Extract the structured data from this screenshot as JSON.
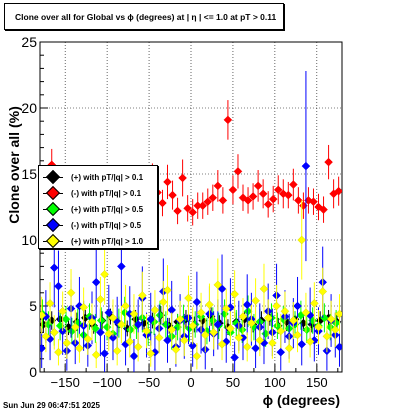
{
  "title": "Clone  over all for Global vs ϕ  (degrees) at |   η  | <= 1.0 at pT > 0.11",
  "timestamp": "Sun Jun 29 06:47:51 2025",
  "chart_data": {
    "type": "scatter",
    "xlabel": "ϕ  (degrees)",
    "ylabel": "Clone  over all (%)",
    "xlim": [
      -180,
      180
    ],
    "ylim": [
      0,
      25
    ],
    "xticks": [
      -150,
      -100,
      -50,
      0,
      50,
      100,
      150
    ],
    "yticks": [
      0,
      5,
      10,
      15,
      20,
      25
    ],
    "grid": true,
    "legend_position": "left-middle",
    "series": [
      {
        "name": "(+) with pT/|q| > 0.1",
        "color": "#000000",
        "x": [
          -176,
          -166,
          -156,
          -146,
          -136,
          -126,
          -116,
          -106,
          -96,
          -86,
          -76,
          -66,
          -56,
          -46,
          -36,
          -26,
          -16,
          -6,
          4,
          14,
          24,
          34,
          44,
          54,
          64,
          74,
          84,
          94,
          104,
          114,
          124,
          134,
          144,
          154,
          164,
          174
        ],
        "y": [
          3.6,
          3.9,
          4.0,
          3.4,
          3.8,
          4.1,
          3.5,
          3.9,
          4.2,
          3.6,
          3.3,
          4.0,
          3.7,
          3.9,
          4.3,
          3.5,
          3.8,
          4.0,
          3.6,
          3.9,
          4.2,
          3.7,
          3.4,
          3.8,
          4.0,
          3.6,
          3.9,
          4.1,
          3.5,
          3.8,
          4.0,
          3.7,
          3.6,
          3.9,
          4.1,
          3.8
        ],
        "err": [
          0.6,
          0.7,
          0.6,
          0.6,
          0.7,
          0.6,
          0.6,
          0.7,
          0.6,
          0.6,
          0.6,
          0.7,
          0.6,
          0.6,
          0.7,
          0.6,
          0.6,
          0.7,
          0.6,
          0.6,
          0.7,
          0.6,
          0.6,
          0.7,
          0.6,
          0.6,
          0.7,
          0.6,
          0.6,
          0.7,
          0.6,
          0.6,
          0.6,
          0.7,
          0.6,
          0.6
        ]
      },
      {
        "name": "(-) with pT/|q| > 0.1",
        "color": "#ff0000",
        "x": [
          -178,
          -172,
          -166,
          -160,
          -154,
          -148,
          -142,
          -136,
          -130,
          -124,
          -118,
          -112,
          -106,
          -100,
          -94,
          -88,
          -82,
          -76,
          -70,
          -64,
          -58,
          -52,
          -46,
          -40,
          -34,
          -28,
          -22,
          -16,
          -10,
          -4,
          2,
          8,
          14,
          20,
          26,
          32,
          38,
          44,
          50,
          56,
          62,
          68,
          74,
          80,
          86,
          92,
          98,
          104,
          110,
          116,
          122,
          128,
          134,
          140,
          146,
          152,
          158,
          164,
          170,
          176
        ],
        "y": [
          13.5,
          14.0,
          15.7,
          13.2,
          12.6,
          13.3,
          12.4,
          13.1,
          12.5,
          12.8,
          13.0,
          12.2,
          12.7,
          11.6,
          11.4,
          11.8,
          11.5,
          12.0,
          11.2,
          12.3,
          11.9,
          12.0,
          14.5,
          13.6,
          12.8,
          14.4,
          13.4,
          12.2,
          14.7,
          12.4,
          12.1,
          12.6,
          12.6,
          12.9,
          13.2,
          14.1,
          13.0,
          19.1,
          13.8,
          15.2,
          13.2,
          13.0,
          13.3,
          14.1,
          13.5,
          12.7,
          13.1,
          13.8,
          13.5,
          13.4,
          14.2,
          13.0,
          12.6,
          13.0,
          12.9,
          12.5,
          12.3,
          15.9,
          13.5,
          13.7
        ],
        "err": [
          0.9,
          1.0,
          1.2,
          1.0,
          0.9,
          1.0,
          0.9,
          1.0,
          0.9,
          1.0,
          1.0,
          0.9,
          1.0,
          0.9,
          0.9,
          1.0,
          0.9,
          1.0,
          0.9,
          1.0,
          0.9,
          1.0,
          1.3,
          1.1,
          1.0,
          1.3,
          1.1,
          1.0,
          1.4,
          1.0,
          1.0,
          1.0,
          1.0,
          1.0,
          1.0,
          1.2,
          1.0,
          1.5,
          1.1,
          1.3,
          1.0,
          1.0,
          1.0,
          1.2,
          1.1,
          1.0,
          1.0,
          1.1,
          1.1,
          1.0,
          1.2,
          1.0,
          1.0,
          1.0,
          1.0,
          1.0,
          1.0,
          1.3,
          1.1,
          1.1
        ]
      },
      {
        "name": "(+) with pT/|q| > 0.5",
        "color": "#00ff00",
        "x": [
          -177,
          -170,
          -163,
          -156,
          -149,
          -142,
          -135,
          -128,
          -121,
          -114,
          -107,
          -100,
          -93,
          -86,
          -79,
          -72,
          -65,
          -58,
          -51,
          -44,
          -37,
          -30,
          -23,
          -16,
          -9,
          -2,
          5,
          12,
          19,
          26,
          33,
          40,
          47,
          54,
          61,
          68,
          75,
          82,
          89,
          96,
          103,
          110,
          117,
          124,
          131,
          138,
          145,
          152,
          159,
          166,
          173
        ],
        "y": [
          4.4,
          3.6,
          3.0,
          3.5,
          4.0,
          3.1,
          3.7,
          2.8,
          4.2,
          3.3,
          3.9,
          3.4,
          2.9,
          3.7,
          4.5,
          3.2,
          3.5,
          4.1,
          3.0,
          3.8,
          4.3,
          3.6,
          2.7,
          3.4,
          4.0,
          3.3,
          3.6,
          4.2,
          3.1,
          3.9,
          3.5,
          4.4,
          3.0,
          3.7,
          3.2,
          4.6,
          3.4,
          3.8,
          2.9,
          4.1,
          3.5,
          4.0,
          3.3,
          3.6,
          4.3,
          3.2,
          3.9,
          3.5,
          4.1,
          3.4,
          3.7
        ],
        "err": [
          1.1,
          1.0,
          1.0,
          1.1,
          1.0,
          1.0,
          1.1,
          1.0,
          1.0,
          1.1,
          1.0,
          1.0,
          1.0,
          1.1,
          1.2,
          1.0,
          1.0,
          1.1,
          1.0,
          1.0,
          1.1,
          1.0,
          1.0,
          1.0,
          1.1,
          1.0,
          1.0,
          1.1,
          1.0,
          1.0,
          1.0,
          1.1,
          1.0,
          1.0,
          1.0,
          1.2,
          1.0,
          1.0,
          1.0,
          1.1,
          1.0,
          1.0,
          1.0,
          1.0,
          1.1,
          1.0,
          1.0,
          1.0,
          1.1,
          1.0,
          1.0
        ]
      },
      {
        "name": "(-) with pT/|q| > 0.5",
        "color": "#0000ff",
        "x": [
          -178,
          -173,
          -168,
          -163,
          -158,
          -153,
          -148,
          -143,
          -138,
          -133,
          -128,
          -123,
          -118,
          -113,
          -108,
          -103,
          -98,
          -93,
          -88,
          -83,
          -78,
          -73,
          -68,
          -63,
          -58,
          -53,
          -48,
          -43,
          -38,
          -33,
          -28,
          -23,
          -18,
          -13,
          -8,
          -3,
          2,
          7,
          12,
          17,
          22,
          27,
          32,
          37,
          42,
          47,
          52,
          57,
          62,
          67,
          72,
          77,
          82,
          87,
          92,
          97,
          102,
          107,
          112,
          117,
          122,
          127,
          132,
          137,
          142,
          147,
          152,
          157,
          162,
          167,
          172,
          177
        ],
        "y": [
          1.8,
          4.2,
          2.5,
          7.9,
          6.5,
          3.1,
          1.6,
          4.8,
          2.2,
          5.0,
          3.5,
          2.0,
          4.1,
          6.8,
          3.0,
          1.4,
          4.5,
          2.6,
          3.8,
          8.0,
          2.1,
          4.4,
          1.2,
          3.6,
          5.6,
          2.8,
          4.0,
          1.5,
          3.3,
          6.1,
          2.4,
          4.7,
          1.9,
          3.9,
          2.7,
          4.1,
          2.0,
          5.3,
          3.2,
          1.7,
          4.4,
          2.9,
          3.6,
          6.3,
          2.3,
          4.9,
          1.1,
          3.5,
          2.6,
          5.1,
          4.0,
          1.8,
          3.4,
          2.2,
          4.6,
          3.0,
          5.8,
          1.5,
          4.2,
          2.7,
          3.7,
          5.0,
          2.1,
          15.6,
          4.3,
          2.4,
          3.1,
          6.8,
          1.6,
          3.9,
          2.8,
          1.9
        ],
        "err": [
          1.5,
          2.0,
          1.6,
          3.0,
          2.7,
          1.8,
          1.5,
          2.2,
          1.6,
          2.2,
          1.9,
          1.6,
          2.0,
          2.7,
          1.8,
          1.4,
          2.1,
          1.7,
          1.9,
          3.0,
          1.6,
          2.1,
          1.3,
          1.9,
          2.4,
          1.7,
          2.0,
          1.4,
          1.8,
          2.5,
          1.7,
          2.2,
          1.5,
          2.0,
          1.7,
          2.0,
          1.6,
          2.3,
          1.8,
          1.5,
          2.1,
          1.7,
          1.9,
          2.6,
          1.6,
          2.2,
          1.2,
          1.9,
          1.7,
          2.3,
          2.0,
          1.5,
          1.8,
          1.6,
          2.1,
          1.8,
          2.4,
          1.4,
          2.0,
          1.7,
          1.9,
          2.2,
          1.6,
          7.2,
          2.1,
          1.6,
          1.8,
          2.7,
          1.5,
          2.0,
          1.7,
          1.5
        ]
      },
      {
        "name": "(+) with pT/|q| > 1.0",
        "color": "#ffff00",
        "x": [
          -178,
          -173,
          -168,
          -163,
          -158,
          -153,
          -148,
          -143,
          -138,
          -133,
          -128,
          -123,
          -118,
          -113,
          -108,
          -103,
          -98,
          -93,
          -88,
          -83,
          -78,
          -73,
          -68,
          -63,
          -58,
          -53,
          -48,
          -43,
          -38,
          -33,
          -28,
          -23,
          -18,
          -13,
          -8,
          -3,
          2,
          7,
          12,
          17,
          22,
          27,
          32,
          37,
          42,
          47,
          52,
          57,
          62,
          67,
          72,
          77,
          82,
          87,
          92,
          97,
          102,
          107,
          112,
          117,
          122,
          127,
          132,
          137,
          142,
          147,
          152,
          157,
          162,
          167,
          172,
          177
        ],
        "y": [
          4.3,
          2.7,
          5.2,
          3.0,
          1.5,
          4.6,
          2.2,
          6.0,
          3.4,
          1.8,
          4.9,
          2.5,
          3.8,
          1.3,
          5.5,
          7.4,
          2.9,
          4.1,
          1.6,
          3.6,
          5.0,
          2.3,
          4.4,
          1.9,
          5.8,
          3.1,
          1.4,
          4.7,
          2.6,
          5.3,
          6.2,
          3.2,
          1.7,
          4.0,
          2.4,
          5.6,
          3.5,
          1.2,
          4.5,
          2.8,
          5.1,
          3.0,
          6.6,
          2.1,
          4.8,
          3.3,
          5.9,
          2.6,
          4.2,
          1.9,
          3.7,
          5.4,
          2.4,
          6.3,
          4.1,
          2.2,
          5.0,
          3.1,
          4.6,
          1.8,
          3.9,
          2.8,
          10.0,
          4.5,
          2.3,
          5.2,
          3.4,
          6.1,
          2.7,
          4.0,
          3.2,
          4.4
        ],
        "err": [
          1.4,
          1.2,
          1.6,
          1.3,
          1.0,
          1.5,
          1.2,
          1.8,
          1.3,
          1.1,
          1.5,
          1.2,
          1.4,
          1.0,
          1.7,
          2.3,
          1.3,
          1.4,
          1.1,
          1.4,
          1.6,
          1.2,
          1.5,
          1.1,
          1.8,
          1.3,
          1.0,
          1.5,
          1.2,
          1.6,
          1.9,
          1.3,
          1.1,
          1.4,
          1.2,
          1.7,
          1.4,
          1.0,
          1.5,
          1.3,
          1.6,
          1.3,
          2.0,
          1.2,
          1.5,
          1.3,
          1.8,
          1.2,
          1.4,
          1.1,
          1.4,
          1.7,
          1.2,
          1.9,
          1.4,
          1.2,
          1.6,
          1.3,
          1.5,
          1.1,
          1.4,
          1.3,
          3.0,
          1.5,
          1.2,
          1.6,
          1.3,
          1.8,
          1.2,
          1.4,
          1.3,
          1.5
        ]
      }
    ]
  }
}
